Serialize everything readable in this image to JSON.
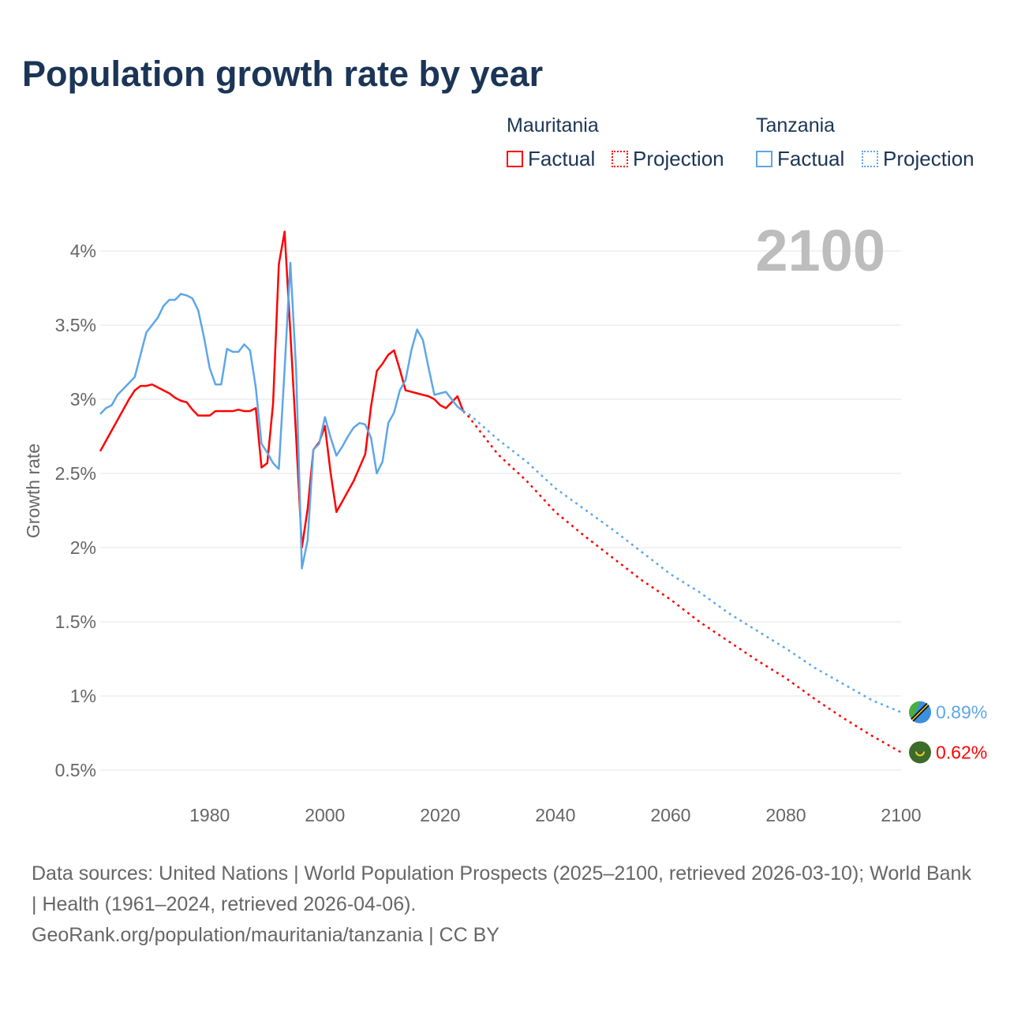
{
  "title": "Population growth rate by year",
  "legend": {
    "groups": [
      {
        "name": "Mauritania",
        "factual": "Factual",
        "projection": "Projection",
        "color": "#ff0000"
      },
      {
        "name": "Tanzania",
        "factual": "Factual",
        "projection": "Projection",
        "color": "#5ea6e8"
      }
    ]
  },
  "footer": {
    "line1": "Data sources: United Nations | World Population Prospects (2025–2100, retrieved 2026-03-10); World Bank | Health (1961–2024, retrieved 2026-04-06).",
    "line2": "GeoRank.org/population/mauritania/tanzania | CC BY"
  },
  "chart_data": {
    "type": "line",
    "title": "Population growth rate by year",
    "xlabel": "",
    "ylabel": "Growth rate",
    "xlim": [
      1961,
      2100
    ],
    "ylim": [
      0.4,
      4.2
    ],
    "x_ticks": [
      1980,
      2000,
      2020,
      2040,
      2060,
      2080,
      2100
    ],
    "y_ticks": [
      0.5,
      1,
      1.5,
      2,
      2.5,
      3,
      3.5,
      4
    ],
    "y_tick_labels": [
      "0.5%",
      "1%",
      "1.5%",
      "2%",
      "2.5%",
      "3%",
      "3.5%",
      "4%"
    ],
    "x_tick_labels": [
      "1980",
      "2000",
      "2020",
      "2040",
      "2060",
      "2080",
      "2100"
    ],
    "watermark_year": "2100",
    "grid": true,
    "series": [
      {
        "name": "Mauritania",
        "color": "#ff0000",
        "end_label": "0.62%",
        "factual": {
          "x_start": 1961,
          "values": [
            2.65,
            2.72,
            2.79,
            2.86,
            2.93,
            3.0,
            3.06,
            3.09,
            3.09,
            3.1,
            3.08,
            3.06,
            3.04,
            3.01,
            2.99,
            2.98,
            2.93,
            2.89,
            2.89,
            2.89,
            2.92,
            2.92,
            2.92,
            2.92,
            2.93,
            2.92,
            2.92,
            2.94,
            2.54,
            2.57,
            2.97,
            3.91,
            4.13,
            3.45,
            2.75,
            2.0,
            2.26,
            2.66,
            2.71,
            2.82,
            2.5,
            2.24,
            2.31,
            2.38,
            2.45,
            2.54,
            2.63,
            2.95,
            3.19,
            3.24,
            3.3,
            3.33,
            3.2,
            3.06,
            3.05,
            3.04,
            3.03,
            3.02,
            3.0,
            2.96,
            2.94,
            2.98,
            3.02,
            2.92
          ]
        },
        "projection": {
          "x": [
            2024,
            2025,
            2030,
            2035,
            2040,
            2045,
            2050,
            2055,
            2060,
            2065,
            2070,
            2075,
            2080,
            2085,
            2090,
            2095,
            2100
          ],
          "values": [
            2.92,
            2.88,
            2.63,
            2.45,
            2.24,
            2.08,
            1.93,
            1.78,
            1.65,
            1.5,
            1.37,
            1.24,
            1.12,
            0.98,
            0.85,
            0.73,
            0.62
          ]
        }
      },
      {
        "name": "Tanzania",
        "color": "#5ea6e8",
        "end_label": "0.89%",
        "factual": {
          "x_start": 1961,
          "values": [
            2.9,
            2.94,
            2.96,
            3.03,
            3.07,
            3.11,
            3.15,
            3.3,
            3.45,
            3.5,
            3.55,
            3.63,
            3.67,
            3.67,
            3.71,
            3.7,
            3.68,
            3.6,
            3.42,
            3.21,
            3.1,
            3.1,
            3.34,
            3.32,
            3.32,
            3.37,
            3.33,
            3.08,
            2.7,
            2.64,
            2.57,
            2.53,
            3.2,
            3.92,
            3.2,
            1.86,
            2.05,
            2.66,
            2.7,
            2.88,
            2.74,
            2.62,
            2.68,
            2.75,
            2.81,
            2.84,
            2.83,
            2.74,
            2.5,
            2.58,
            2.84,
            2.91,
            3.06,
            3.13,
            3.33,
            3.47,
            3.4,
            3.21,
            3.03,
            3.04,
            3.05,
            3.0,
            2.95,
            2.92
          ]
        },
        "projection": {
          "x": [
            2024,
            2025,
            2030,
            2035,
            2040,
            2045,
            2050,
            2055,
            2060,
            2065,
            2070,
            2075,
            2080,
            2085,
            2090,
            2095,
            2100
          ],
          "values": [
            2.92,
            2.9,
            2.73,
            2.58,
            2.4,
            2.26,
            2.12,
            1.97,
            1.82,
            1.7,
            1.56,
            1.44,
            1.32,
            1.19,
            1.08,
            0.97,
            0.89
          ]
        }
      }
    ]
  }
}
